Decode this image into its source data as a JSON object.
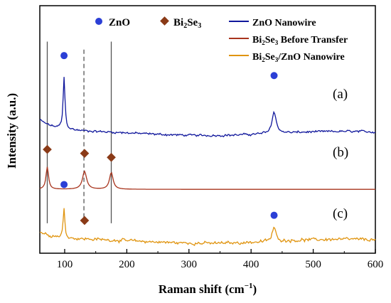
{
  "chart_data": {
    "type": "line",
    "xlabel_main": "Raman shift (cm",
    "xlabel_sup": "−1",
    "xlabel_end": ")",
    "ylabel": "Intensity (a.u.)",
    "xlim": [
      60,
      600
    ],
    "x_ticks": [
      100,
      200,
      300,
      400,
      500,
      600
    ],
    "grid": false,
    "legend_position": "top",
    "marker_legend": [
      {
        "symbol": "circle",
        "label": "ZnO",
        "color": "#2b3fd6"
      },
      {
        "symbol": "diamond",
        "label_main": "Bi",
        "label_sub": "2",
        "label_rest": "Se",
        "label_sub2": "3",
        "color": "#8a3a17"
      }
    ],
    "line_legend": [
      {
        "name": "ZnO Nanowire",
        "color": "#10179c"
      },
      {
        "name_main": "Bi",
        "name_sub": "2",
        "name_rest": "Se",
        "name_sub2": "3",
        "name_end": " Before Transfer",
        "color": "#a8341d"
      },
      {
        "name_main": "Bi",
        "name_sub": "2",
        "name_rest": "Se",
        "name_sub2": "3",
        "name_end": "/ZnO Nanowire",
        "color": "#e0940f"
      }
    ],
    "curve_labels": [
      "(a)",
      "(b)",
      "(c)"
    ],
    "reference_lines": [
      {
        "x": 72,
        "style": "solid"
      },
      {
        "x": 131,
        "style": "dashed"
      },
      {
        "x": 175,
        "style": "solid"
      }
    ],
    "series": [
      {
        "name": "ZnO Nanowire",
        "offset": 3.0,
        "noise": 0.035,
        "baseline": 0.3,
        "peaks": [
          [
            99,
            1.3,
            1.8
          ],
          [
            437,
            0.55,
            4.0
          ]
        ]
      },
      {
        "name": "Bi2Se3 Before Transfer",
        "offset": 1.6,
        "noise": 0.0,
        "baseline": 0.0,
        "peaks": [
          [
            72,
            0.56,
            2.5
          ],
          [
            132,
            0.45,
            4.0
          ],
          [
            175,
            0.42,
            3.5
          ]
        ]
      },
      {
        "name": "Bi2Se3/ZnO Nanowire",
        "offset": 0.3,
        "noise": 0.05,
        "baseline": 0.2,
        "peaks": [
          [
            99,
            0.75,
            1.6
          ],
          [
            437,
            0.35,
            3.5
          ]
        ]
      }
    ],
    "peak_markers": [
      {
        "x": 99,
        "y": 4.95,
        "symbol": "circle"
      },
      {
        "x": 437,
        "y": 4.45,
        "symbol": "circle"
      },
      {
        "x": 72,
        "y": 2.6,
        "symbol": "diamond"
      },
      {
        "x": 132,
        "y": 2.5,
        "symbol": "diamond"
      },
      {
        "x": 175,
        "y": 2.4,
        "symbol": "diamond"
      },
      {
        "x": 99,
        "y": 1.72,
        "symbol": "circle"
      },
      {
        "x": 132,
        "y": 0.82,
        "symbol": "diamond"
      },
      {
        "x": 437,
        "y": 0.95,
        "symbol": "circle"
      }
    ],
    "ylim": [
      0,
      6.2
    ]
  }
}
